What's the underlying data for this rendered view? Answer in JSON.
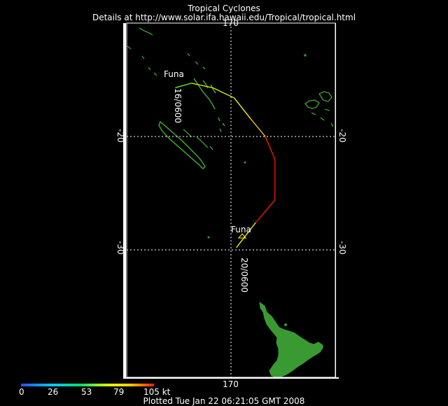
{
  "header": {
    "title": "Tropical Cyclones",
    "subtitle": "Details at http://www.solar.ifa.hawaii.edu/Tropical/tropical.html"
  },
  "map": {
    "longitude_labels": {
      "top": "170",
      "bottom": "170"
    },
    "latitude_labels": [
      "-20",
      "-30"
    ],
    "colors": {
      "land": "#3a9a32",
      "grid": "#ffffff",
      "frame": "#ffffff",
      "background": "#000000"
    }
  },
  "storm": {
    "name": "Funa",
    "start_label": "Funa",
    "end_label": "Funa",
    "start_time_label": "16/0600",
    "end_time_label": "20/0600",
    "track": [
      {
        "lat": -15.7,
        "lon": 164.8,
        "kt": 45
      },
      {
        "lat": -15.3,
        "lon": 166.3,
        "kt": 55
      },
      {
        "lat": -15.7,
        "lon": 168.3,
        "kt": 65
      },
      {
        "lat": -16.6,
        "lon": 170.3,
        "kt": 72
      },
      {
        "lat": -18.4,
        "lon": 171.8,
        "kt": 80
      },
      {
        "lat": -20.0,
        "lon": 173.2,
        "kt": 95
      },
      {
        "lat": -22.0,
        "lon": 174.1,
        "kt": 105
      },
      {
        "lat": -25.6,
        "lon": 174.1,
        "kt": 105
      },
      {
        "lat": -27.6,
        "lon": 172.3,
        "kt": 85
      },
      {
        "lat": -29.8,
        "lon": 170.5,
        "kt": 75
      }
    ]
  },
  "colorbar": {
    "ticks": [
      "0",
      "26",
      "53",
      "79",
      "105 kt"
    ]
  },
  "footer": {
    "plotted": "Plotted Tue Jan 22 06:21:05 GMT 2008"
  }
}
